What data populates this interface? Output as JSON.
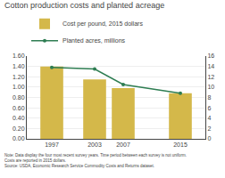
{
  "chart_data": {
    "type": "bar",
    "title": "Cotton production costs and planted acreage",
    "x": [
      1997,
      2003,
      2007,
      2015
    ],
    "xlim": [
      1993.5,
      2018.5
    ],
    "xticks": [
      1997,
      2003,
      2007,
      2015
    ],
    "ylim": [
      0.0,
      1.6
    ],
    "yticks": [
      {
        "value": 0,
        "label": "0.00"
      },
      {
        "value": 0.2,
        "label": "0.20"
      },
      {
        "value": 0.4,
        "label": "0.40"
      },
      {
        "value": 0.6,
        "label": "0.60"
      },
      {
        "value": 0.8,
        "label": "0.80"
      },
      {
        "value": 1.0,
        "label": "1.00"
      },
      {
        "value": 1.2,
        "label": "1.20"
      },
      {
        "value": 1.4,
        "label": "1.40"
      },
      {
        "value": 1.6,
        "label": "1.60"
      }
    ],
    "y2lim": [
      0,
      16
    ],
    "y2ticks": [
      0,
      2,
      4,
      6,
      8,
      10,
      12,
      14,
      16
    ],
    "series": [
      {
        "name": "Cost per pound, 2015 dollars",
        "type": "bar",
        "color": "#d4b84a",
        "values": [
          1.4,
          1.15,
          0.98,
          0.88
        ]
      },
      {
        "name": "Planted acres, millions",
        "type": "line",
        "color": "#2e7d52",
        "marker": "o",
        "axis": "y2",
        "values": [
          13.8,
          13.5,
          10.5,
          8.8
        ]
      }
    ],
    "grid": true,
    "legend": "top",
    "annotations": [
      "Note: Data display the four most recent survey years. Time period between each survey is not uniform.",
      "Costs are reported in 2015 dollars.",
      "Source: USDA, Economic Research Service Commodity Costs and Returns dataset."
    ]
  }
}
